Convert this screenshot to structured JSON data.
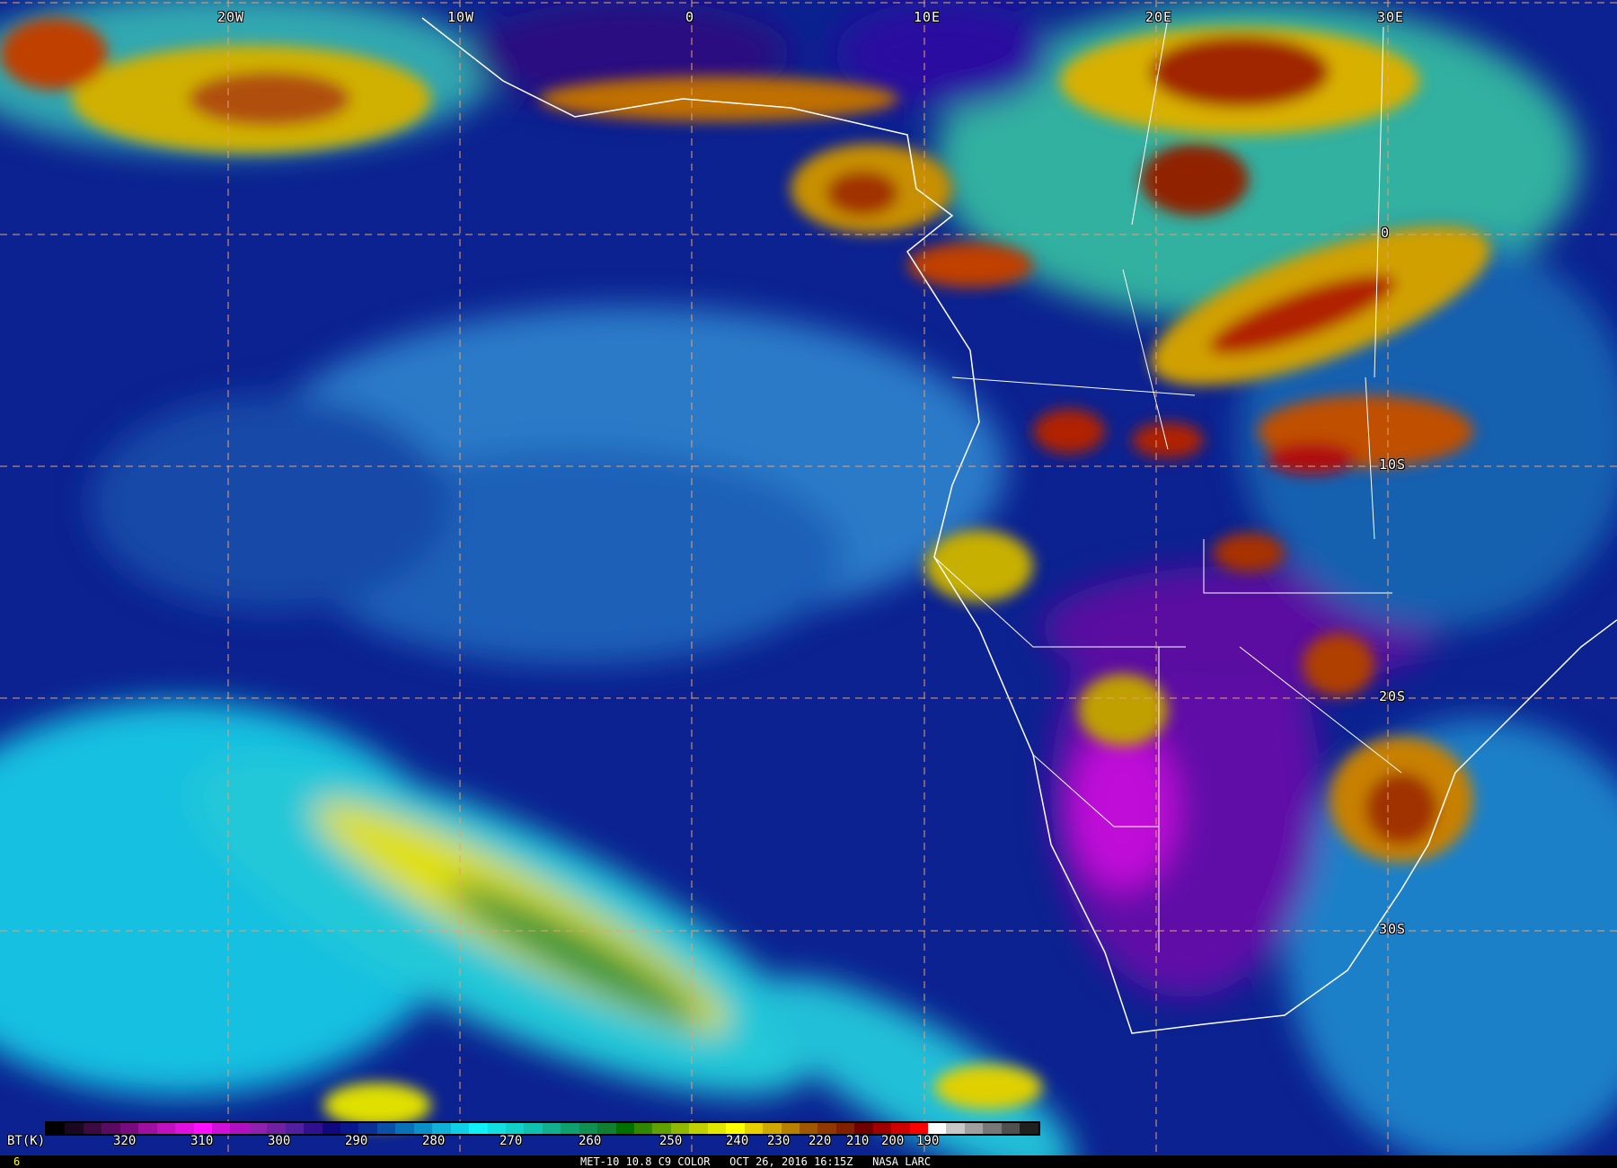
{
  "image": {
    "grid_color": "#e8a070",
    "longitude_labels": [
      "20W",
      "10W",
      "0",
      "10E",
      "20E",
      "30E"
    ],
    "latitude_labels": [
      "0",
      "10S",
      "20S",
      "30S"
    ]
  },
  "colorbar": {
    "unit_label": "BT(K)",
    "tick_labels": [
      "320",
      "310",
      "300",
      "290",
      "280",
      "270",
      "260",
      "250",
      "240",
      "230",
      "220",
      "210",
      "200",
      "190"
    ],
    "colors": [
      "#000000",
      "#1a0820",
      "#3a0a40",
      "#5a0a60",
      "#7a0a80",
      "#a010a0",
      "#c010c0",
      "#e010e0",
      "#ff10ff",
      "#d010d8",
      "#b010c0",
      "#9020b0",
      "#7020a0",
      "#5020a0",
      "#301090",
      "#100880",
      "#0a1890",
      "#0a3098",
      "#0a50a8",
      "#0a70b8",
      "#0a90c8",
      "#10b0d8",
      "#10d0e8",
      "#10f0f8",
      "#10e0e0",
      "#10d0c8",
      "#10c0b0",
      "#10b090",
      "#10a070",
      "#109050",
      "#108030",
      "#007000",
      "#308800",
      "#60a000",
      "#90b800",
      "#c0d000",
      "#e0e800",
      "#ffff00",
      "#e8d000",
      "#d0a800",
      "#b88000",
      "#a05800",
      "#903800",
      "#802000",
      "#700000",
      "#a00000",
      "#d00000",
      "#ff0000",
      "#ffffff",
      "#c8c8c8",
      "#a0a0a0",
      "#787878",
      "#505050",
      "#202020"
    ]
  },
  "footer": {
    "frame_number": "6",
    "caption": "MET-10 10.8 C9 COLOR   OCT 26, 2016 16:15Z   NASA LARC"
  }
}
